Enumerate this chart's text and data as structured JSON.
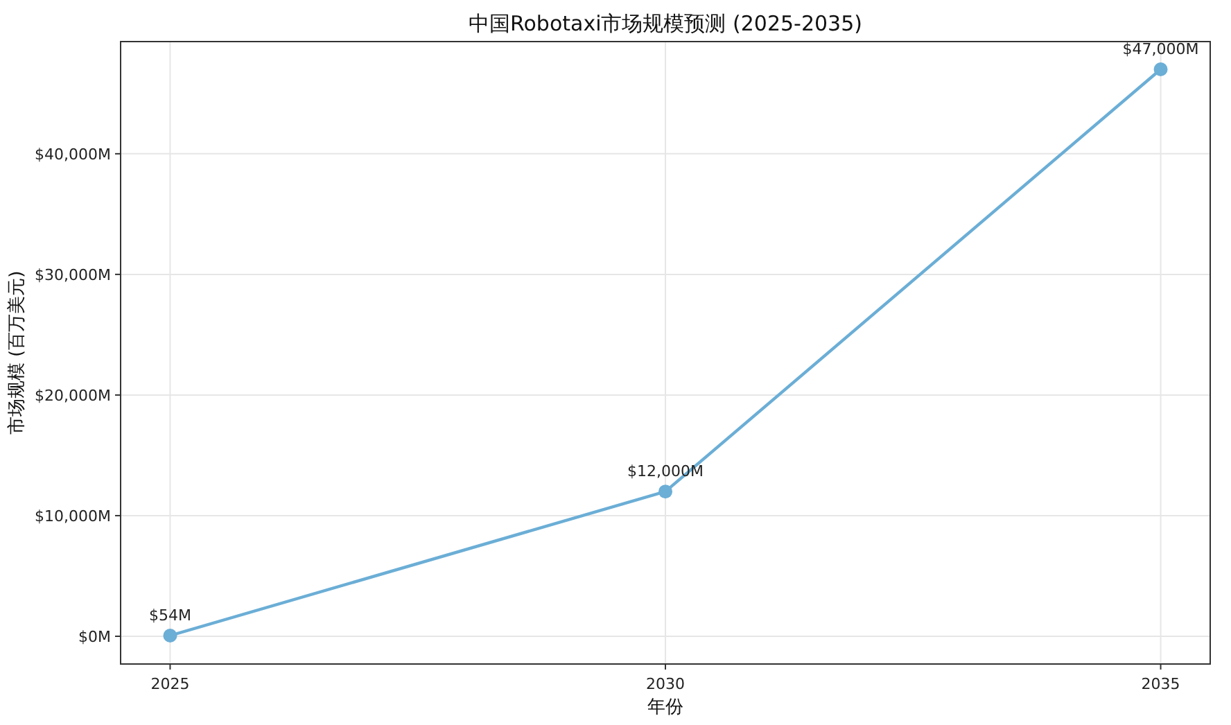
{
  "chart_data": {
    "type": "line",
    "title": "中国Robotaxi市场规模预测 (2025-2035)",
    "xlabel": "年份",
    "ylabel": "市场规模 (百万美元)",
    "x": [
      2025,
      2030,
      2035
    ],
    "series": [
      {
        "color": "#6baed6",
        "values": [
          54,
          12000,
          47000
        ],
        "value_labels": [
          "$54M",
          "$12,000M",
          "$47,000M"
        ]
      }
    ],
    "xlim": [
      2024.5,
      2035.5
    ],
    "xticks": [
      2025,
      2030,
      2035
    ],
    "ylim": [
      -2300,
      49300
    ],
    "yticks": [
      {
        "value": 0,
        "label": "$0M"
      },
      {
        "value": 10000,
        "label": "$10,000M"
      },
      {
        "value": 20000,
        "label": "$20,000M"
      },
      {
        "value": 30000,
        "label": "$30,000M"
      },
      {
        "value": 40000,
        "label": "$40,000M"
      }
    ],
    "grid": true,
    "marker": "circle",
    "line_style": "solid"
  }
}
